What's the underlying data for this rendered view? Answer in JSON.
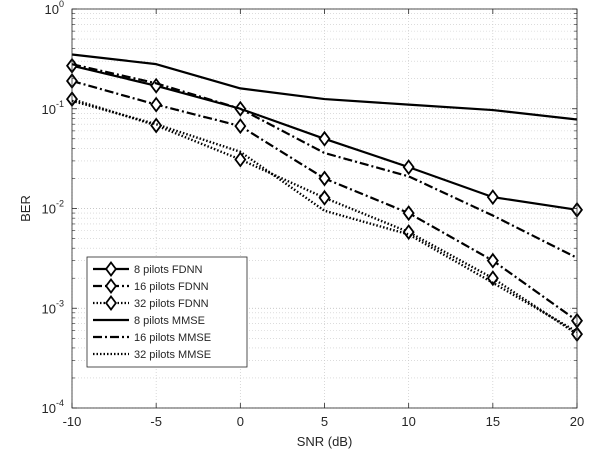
{
  "chart_data": {
    "type": "line",
    "xlabel": "SNR (dB)",
    "ylabel": "BER",
    "xlim": [
      -10,
      20
    ],
    "ylim": [
      0.0001,
      1
    ],
    "yscale": "log",
    "grid": true,
    "legend_position": "bottom-left",
    "x": [
      -10,
      -5,
      0,
      5,
      10,
      15,
      20
    ],
    "xticks": [
      "-10",
      "-5",
      "0",
      "5",
      "10",
      "15",
      "20"
    ],
    "yticks": [
      {
        "base": "10",
        "exp": "-4",
        "value": 0.0001
      },
      {
        "base": "10",
        "exp": "-3",
        "value": 0.001
      },
      {
        "base": "10",
        "exp": "-2",
        "value": 0.01
      },
      {
        "base": "10",
        "exp": "-1",
        "value": 0.1
      },
      {
        "base": "10",
        "exp": "0",
        "value": 1
      }
    ],
    "series": [
      {
        "name": "8 pilots FDNN",
        "dash": "solid",
        "marker": "diamond",
        "values": [
          0.27,
          0.17,
          0.1,
          0.05,
          0.026,
          0.013,
          0.0097
        ]
      },
      {
        "name": "16 pilots FDNN",
        "dash": "dashdot",
        "marker": "diamond",
        "values": [
          0.19,
          0.11,
          0.067,
          0.02,
          0.009,
          0.003,
          0.00075
        ]
      },
      {
        "name": "32 pilots FDNN",
        "dash": "dotted",
        "marker": "diamond",
        "values": [
          0.125,
          0.068,
          0.031,
          0.0128,
          0.0058,
          0.002,
          0.00055
        ]
      },
      {
        "name": "8 pilots MMSE",
        "dash": "solid",
        "marker": "none",
        "values": [
          0.35,
          0.28,
          0.16,
          0.125,
          0.11,
          0.097,
          0.078
        ]
      },
      {
        "name": "16 pilots MMSE",
        "dash": "dashdot",
        "marker": "none",
        "values": [
          0.28,
          0.18,
          0.1,
          0.036,
          0.021,
          0.0085,
          0.0032
        ]
      },
      {
        "name": "32 pilots MMSE",
        "dash": "dotted",
        "marker": "none",
        "values": [
          0.12,
          0.07,
          0.037,
          0.0095,
          0.0055,
          0.0018,
          0.00058
        ]
      }
    ]
  }
}
